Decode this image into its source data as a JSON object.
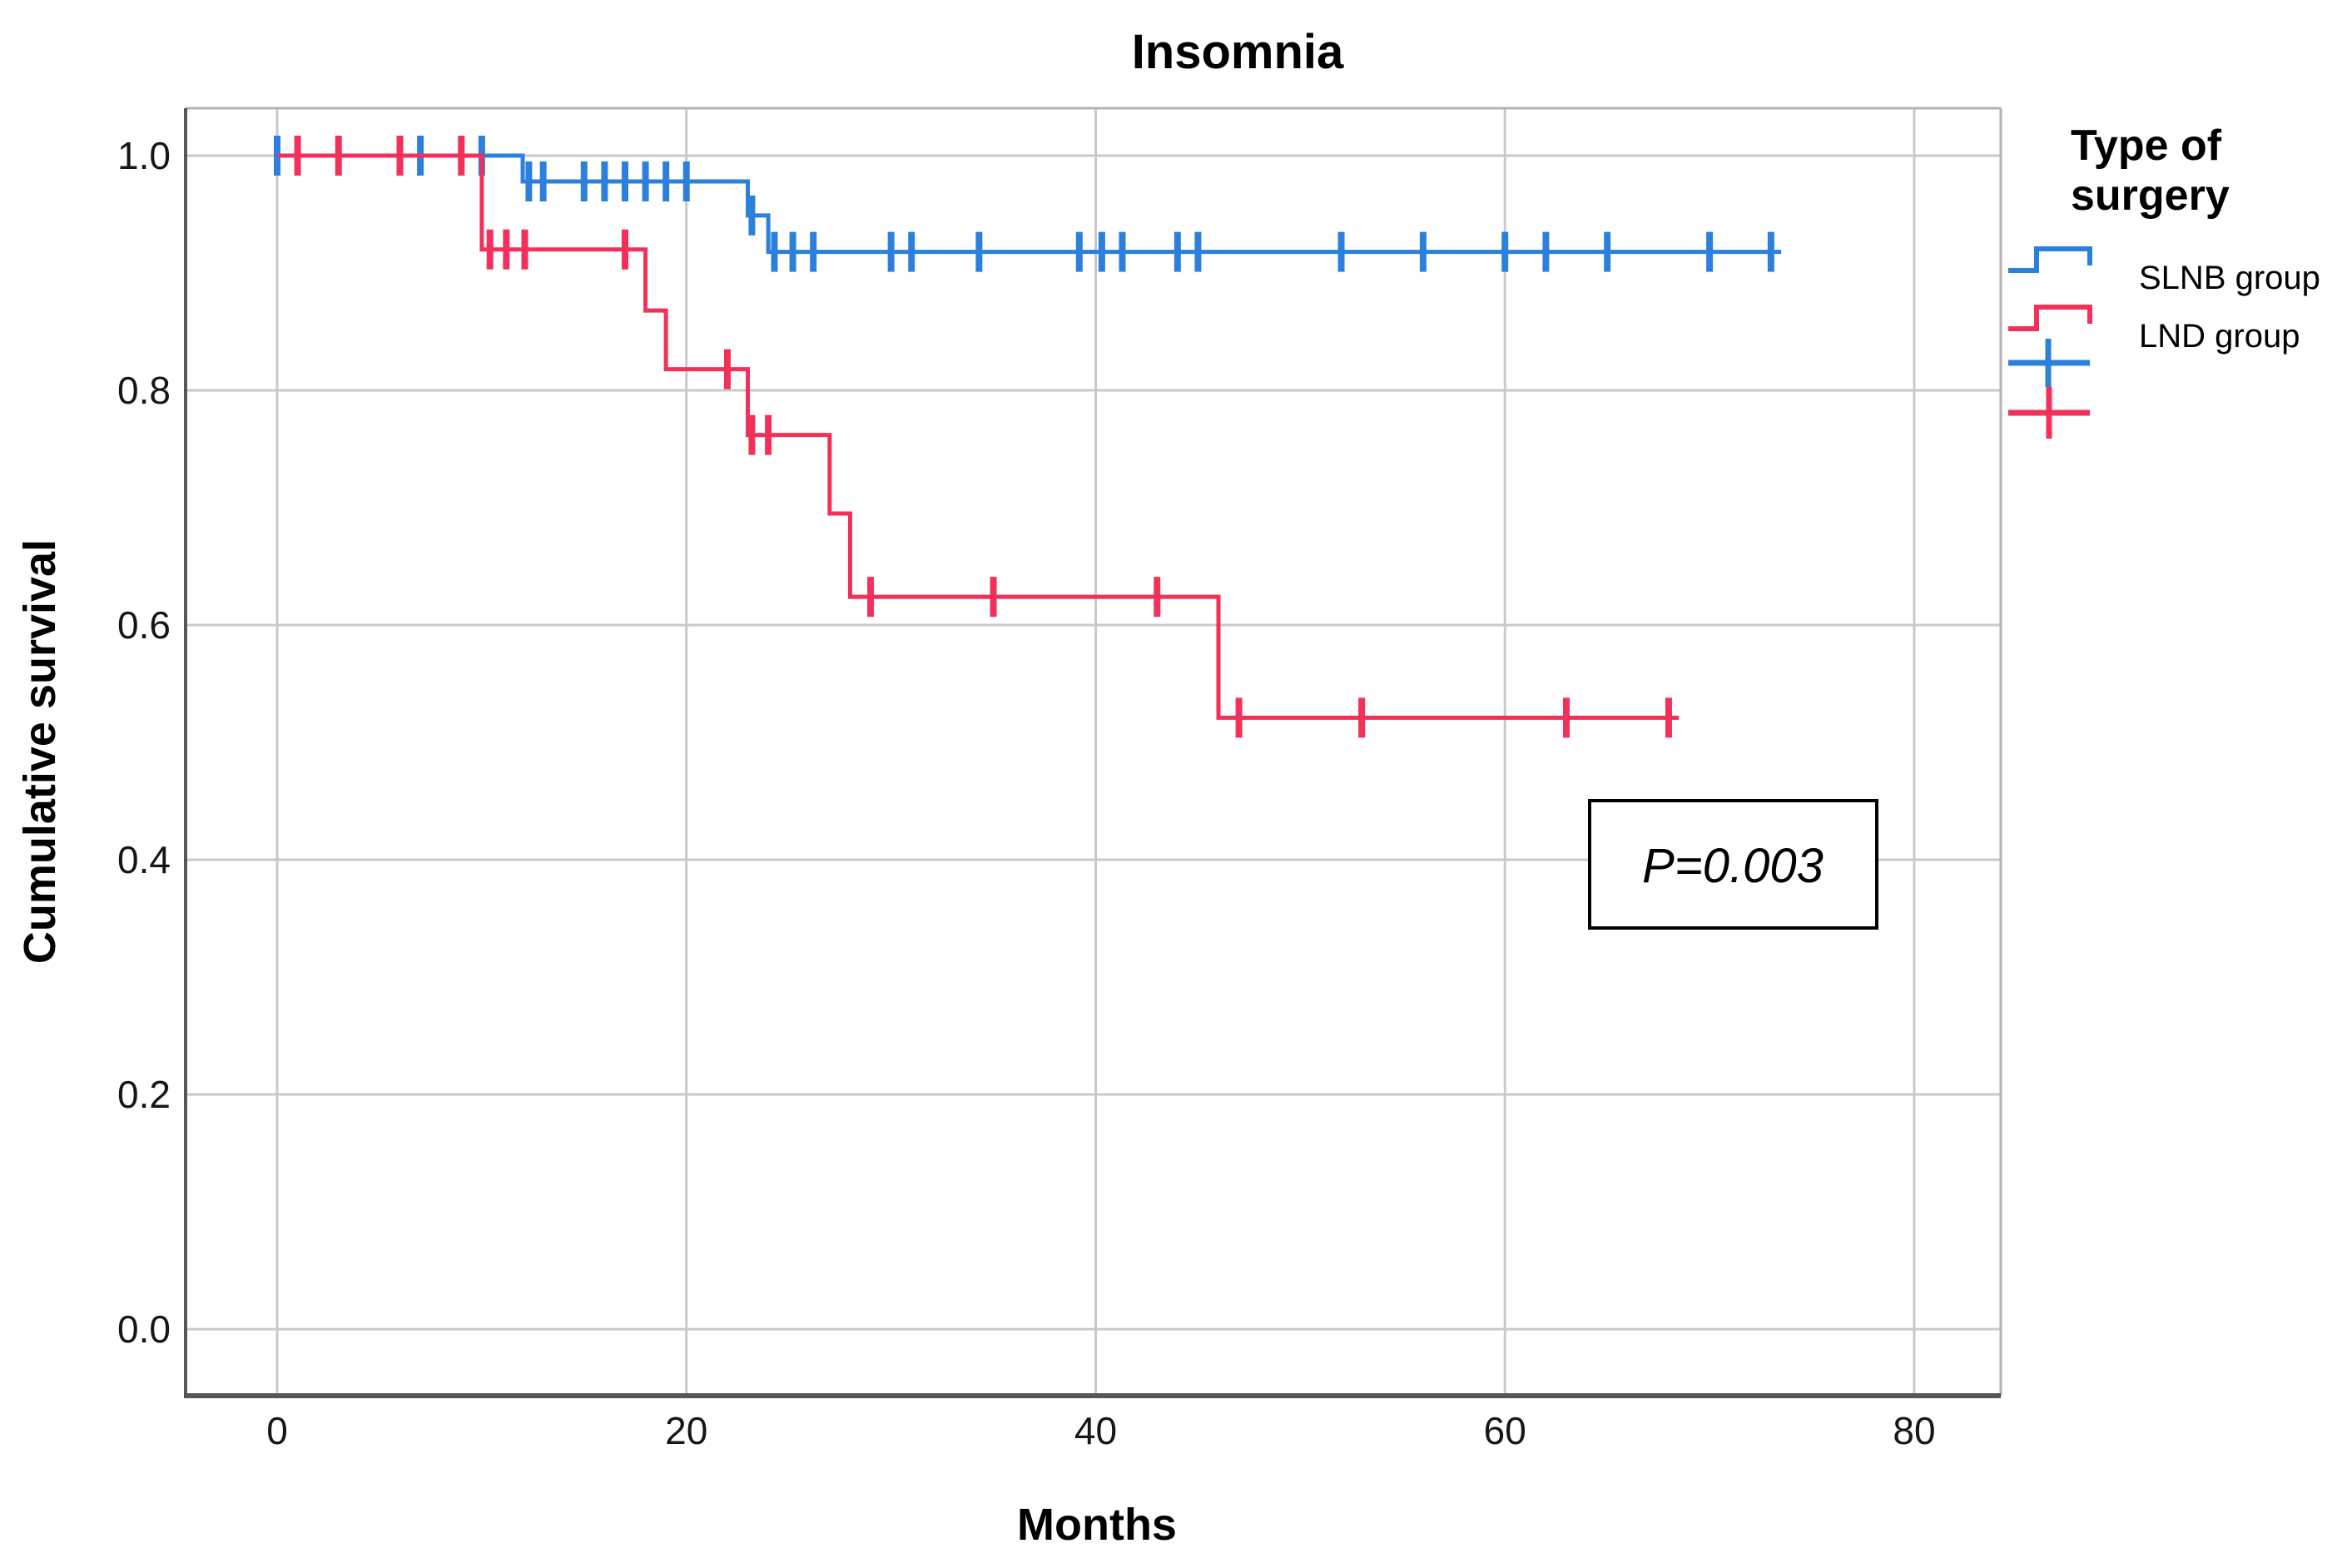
{
  "title": "Insomnia",
  "annotation": {
    "text": "P=0.003"
  },
  "legend": {
    "title": "Type of surgery",
    "title_lines": [
      "Type of",
      "surgery"
    ],
    "items": [
      {
        "label": "SLNB group"
      },
      {
        "label": "LND group"
      }
    ]
  },
  "chart_data": {
    "type": "line",
    "subtype": "kaplan_meier_step_survival",
    "title": "Insomnia",
    "xlabel": "Months",
    "ylabel": "Cumulative survival",
    "xlim": [
      -4.6,
      84.2
    ],
    "ylim": [
      -0.057,
      1.04
    ],
    "grid": true,
    "legend_position": "right",
    "legend_title": "Type of surgery",
    "annotation": {
      "text": "P=0.003",
      "x_month_center": 66.5,
      "y_value_center": 0.4
    },
    "xticks": [
      {
        "label": "0",
        "value": 0
      },
      {
        "label": "20",
        "value": 20
      },
      {
        "label": "40",
        "value": 40
      },
      {
        "label": "60",
        "value": 60
      },
      {
        "label": "80",
        "value": 80
      }
    ],
    "yticks": [
      {
        "label": "1.0",
        "value": 1.0
      },
      {
        "label": "0.8",
        "value": 0.8
      },
      {
        "label": "0.6",
        "value": 0.6
      },
      {
        "label": "0.4",
        "value": 0.4
      },
      {
        "label": "0.2",
        "value": 0.2
      },
      {
        "label": "0.0",
        "value": 0.0
      }
    ],
    "series": [
      {
        "name": "SLNB group",
        "color": "#2b80dd",
        "steps": [
          [
            0,
            1.0
          ],
          [
            12,
            1.0
          ],
          [
            12,
            0.978
          ],
          [
            23,
            0.978
          ],
          [
            23,
            0.949
          ],
          [
            24,
            0.949
          ],
          [
            24,
            0.918
          ],
          [
            73.5,
            0.918
          ]
        ],
        "censored": [
          [
            0,
            1.0
          ],
          [
            7,
            1.0
          ],
          [
            10,
            1.0
          ],
          [
            12.3,
            0.978
          ],
          [
            13,
            0.978
          ],
          [
            15,
            0.978
          ],
          [
            16,
            0.978
          ],
          [
            17,
            0.978
          ],
          [
            18,
            0.978
          ],
          [
            19,
            0.978
          ],
          [
            20,
            0.978
          ],
          [
            23.2,
            0.949
          ],
          [
            24.3,
            0.918
          ],
          [
            25.2,
            0.918
          ],
          [
            26.2,
            0.918
          ],
          [
            30,
            0.918
          ],
          [
            31,
            0.918
          ],
          [
            34.3,
            0.918
          ],
          [
            39.2,
            0.918
          ],
          [
            40.3,
            0.918
          ],
          [
            41.3,
            0.918
          ],
          [
            44,
            0.918
          ],
          [
            45,
            0.918
          ],
          [
            52,
            0.918
          ],
          [
            56,
            0.918
          ],
          [
            60,
            0.918
          ],
          [
            62,
            0.918
          ],
          [
            65,
            0.918
          ],
          [
            70,
            0.918
          ],
          [
            73,
            0.918
          ]
        ]
      },
      {
        "name": "LND group",
        "color": "#f3305a",
        "steps": [
          [
            0,
            1.0
          ],
          [
            10,
            1.0
          ],
          [
            10,
            0.92
          ],
          [
            18,
            0.92
          ],
          [
            18,
            0.868
          ],
          [
            19,
            0.868
          ],
          [
            19,
            0.818
          ],
          [
            23,
            0.818
          ],
          [
            23,
            0.762
          ],
          [
            27,
            0.762
          ],
          [
            27,
            0.695
          ],
          [
            28,
            0.695
          ],
          [
            28,
            0.624
          ],
          [
            46,
            0.624
          ],
          [
            46,
            0.521
          ],
          [
            68.5,
            0.521
          ]
        ],
        "censored": [
          [
            1,
            1.0
          ],
          [
            3,
            1.0
          ],
          [
            6,
            1.0
          ],
          [
            9,
            1.0
          ],
          [
            10.4,
            0.92
          ],
          [
            11.2,
            0.92
          ],
          [
            12.1,
            0.92
          ],
          [
            17,
            0.92
          ],
          [
            22,
            0.818
          ],
          [
            23.2,
            0.762
          ],
          [
            24,
            0.762
          ],
          [
            29,
            0.624
          ],
          [
            35,
            0.624
          ],
          [
            43,
            0.624
          ],
          [
            47,
            0.521
          ],
          [
            53,
            0.521
          ],
          [
            63,
            0.521
          ],
          [
            68,
            0.521
          ]
        ]
      }
    ]
  }
}
